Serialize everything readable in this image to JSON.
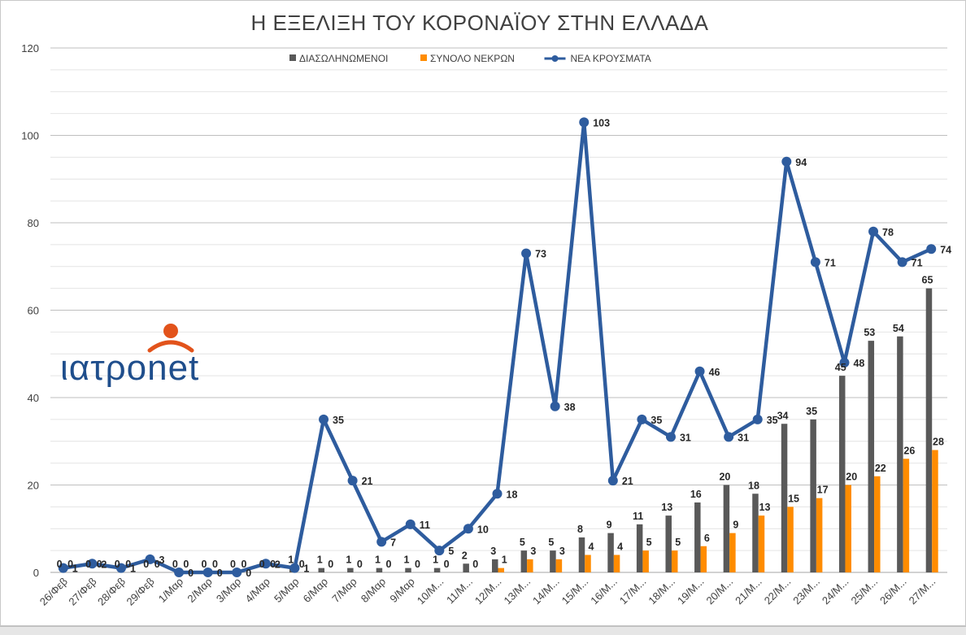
{
  "chart_data": {
    "type": "bar",
    "title": "Η ΕΞΕΛΙΞΗ ΤΟΥ ΚΟΡΟΝΑΪΟΥ ΣΤΗΝ ΕΛΛΑΔΑ",
    "ylim": [
      0,
      120
    ],
    "yticks": [
      0,
      20,
      40,
      60,
      80,
      100,
      120
    ],
    "grid": true,
    "legend_position": "top",
    "categories": [
      "26/Φεβ",
      "27/Φεβ",
      "28/Φεβ",
      "29/Φεβ",
      "1/Μαρ",
      "2/Μαρ",
      "3/Μαρ",
      "4/Μαρ",
      "5/Μαρ",
      "6/Μαρ",
      "7/Μαρ",
      "8/Μαρ",
      "9/Μαρ",
      "10/Μ...",
      "11/Μ...",
      "12/Μ...",
      "13/Μ...",
      "14/Μ...",
      "15/Μ...",
      "16/Μ...",
      "17/Μ...",
      "18/Μ...",
      "19/Μ...",
      "20/Μ...",
      "21/Μ...",
      "22/Μ...",
      "23/Μ...",
      "24/Μ...",
      "25/Μ...",
      "26/Μ...",
      "27/Μ..."
    ],
    "series": [
      {
        "name": "ΔΙΑΣΩΛΗΝΩΜΕΝΟΙ",
        "type": "bar",
        "color": "#595959",
        "values": [
          0,
          0,
          0,
          0,
          0,
          0,
          0,
          0,
          1,
          1,
          1,
          1,
          1,
          1,
          2,
          3,
          5,
          5,
          8,
          9,
          11,
          13,
          16,
          20,
          18,
          34,
          35,
          45,
          53,
          54,
          65
        ]
      },
      {
        "name": "ΣΥΝΟΛΟ ΝΕΚΡΩΝ",
        "type": "bar",
        "color": "#ff8c00",
        "values": [
          0,
          0,
          0,
          0,
          0,
          0,
          0,
          0,
          0,
          0,
          0,
          0,
          0,
          0,
          0,
          1,
          3,
          3,
          4,
          4,
          5,
          5,
          6,
          9,
          13,
          15,
          17,
          20,
          22,
          26,
          28
        ]
      },
      {
        "name": "ΝΕΑ ΚΡΟΥΣΜΑΤΑ",
        "type": "line",
        "color": "#2e5c9e",
        "values": [
          1,
          2,
          1,
          3,
          0,
          0,
          0,
          2,
          1,
          35,
          21,
          7,
          11,
          5,
          10,
          18,
          73,
          38,
          103,
          21,
          35,
          31,
          46,
          31,
          35,
          94,
          71,
          48,
          78,
          71,
          74
        ]
      }
    ]
  },
  "logo": {
    "text": "ιατρonet",
    "brand_blue": "#1f4e8c",
    "brand_orange": "#e2531b"
  }
}
